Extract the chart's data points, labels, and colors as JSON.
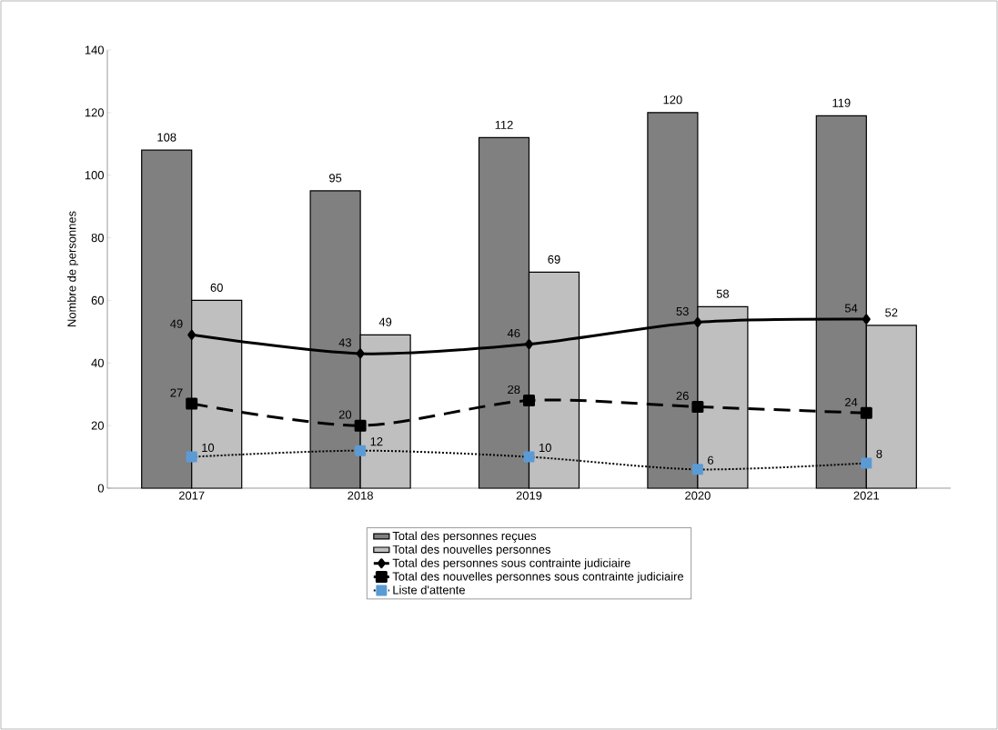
{
  "chart_data": {
    "type": "bar",
    "ylabel": "Nombre de personnes",
    "categories": [
      "2017",
      "2018",
      "2019",
      "2020",
      "2021"
    ],
    "series": [
      {
        "name": "Total des personnes reçues",
        "color": "#808080",
        "values": [
          108,
          95,
          112,
          120,
          119
        ]
      },
      {
        "name": "Total des nouvelles personnes",
        "color": "#bfbfbf",
        "values": [
          60,
          49,
          69,
          58,
          52
        ]
      },
      {
        "name": "Total des personnes sous contrainte judiciaire",
        "type": "line",
        "color": "#000000",
        "marker": "diamond",
        "line_style": "solid",
        "values": [
          49,
          43,
          46,
          53,
          54
        ]
      },
      {
        "name": "Total des nouvelles personnes sous contrainte judiciaire",
        "type": "line",
        "color": "#000000",
        "marker": "square",
        "line_style": "dashed",
        "values": [
          27,
          20,
          28,
          26,
          24
        ]
      },
      {
        "name": "Liste d'attente",
        "type": "line",
        "color": "#5b9bd5",
        "marker": "square",
        "line_style": "dotted",
        "values": [
          10,
          12,
          10,
          6,
          8
        ]
      }
    ],
    "ylim": [
      0,
      140
    ],
    "yticks": [
      0,
      20,
      40,
      60,
      80,
      100,
      120,
      140
    ],
    "data_labels": true,
    "legend": "bottom",
    "grid": false
  }
}
